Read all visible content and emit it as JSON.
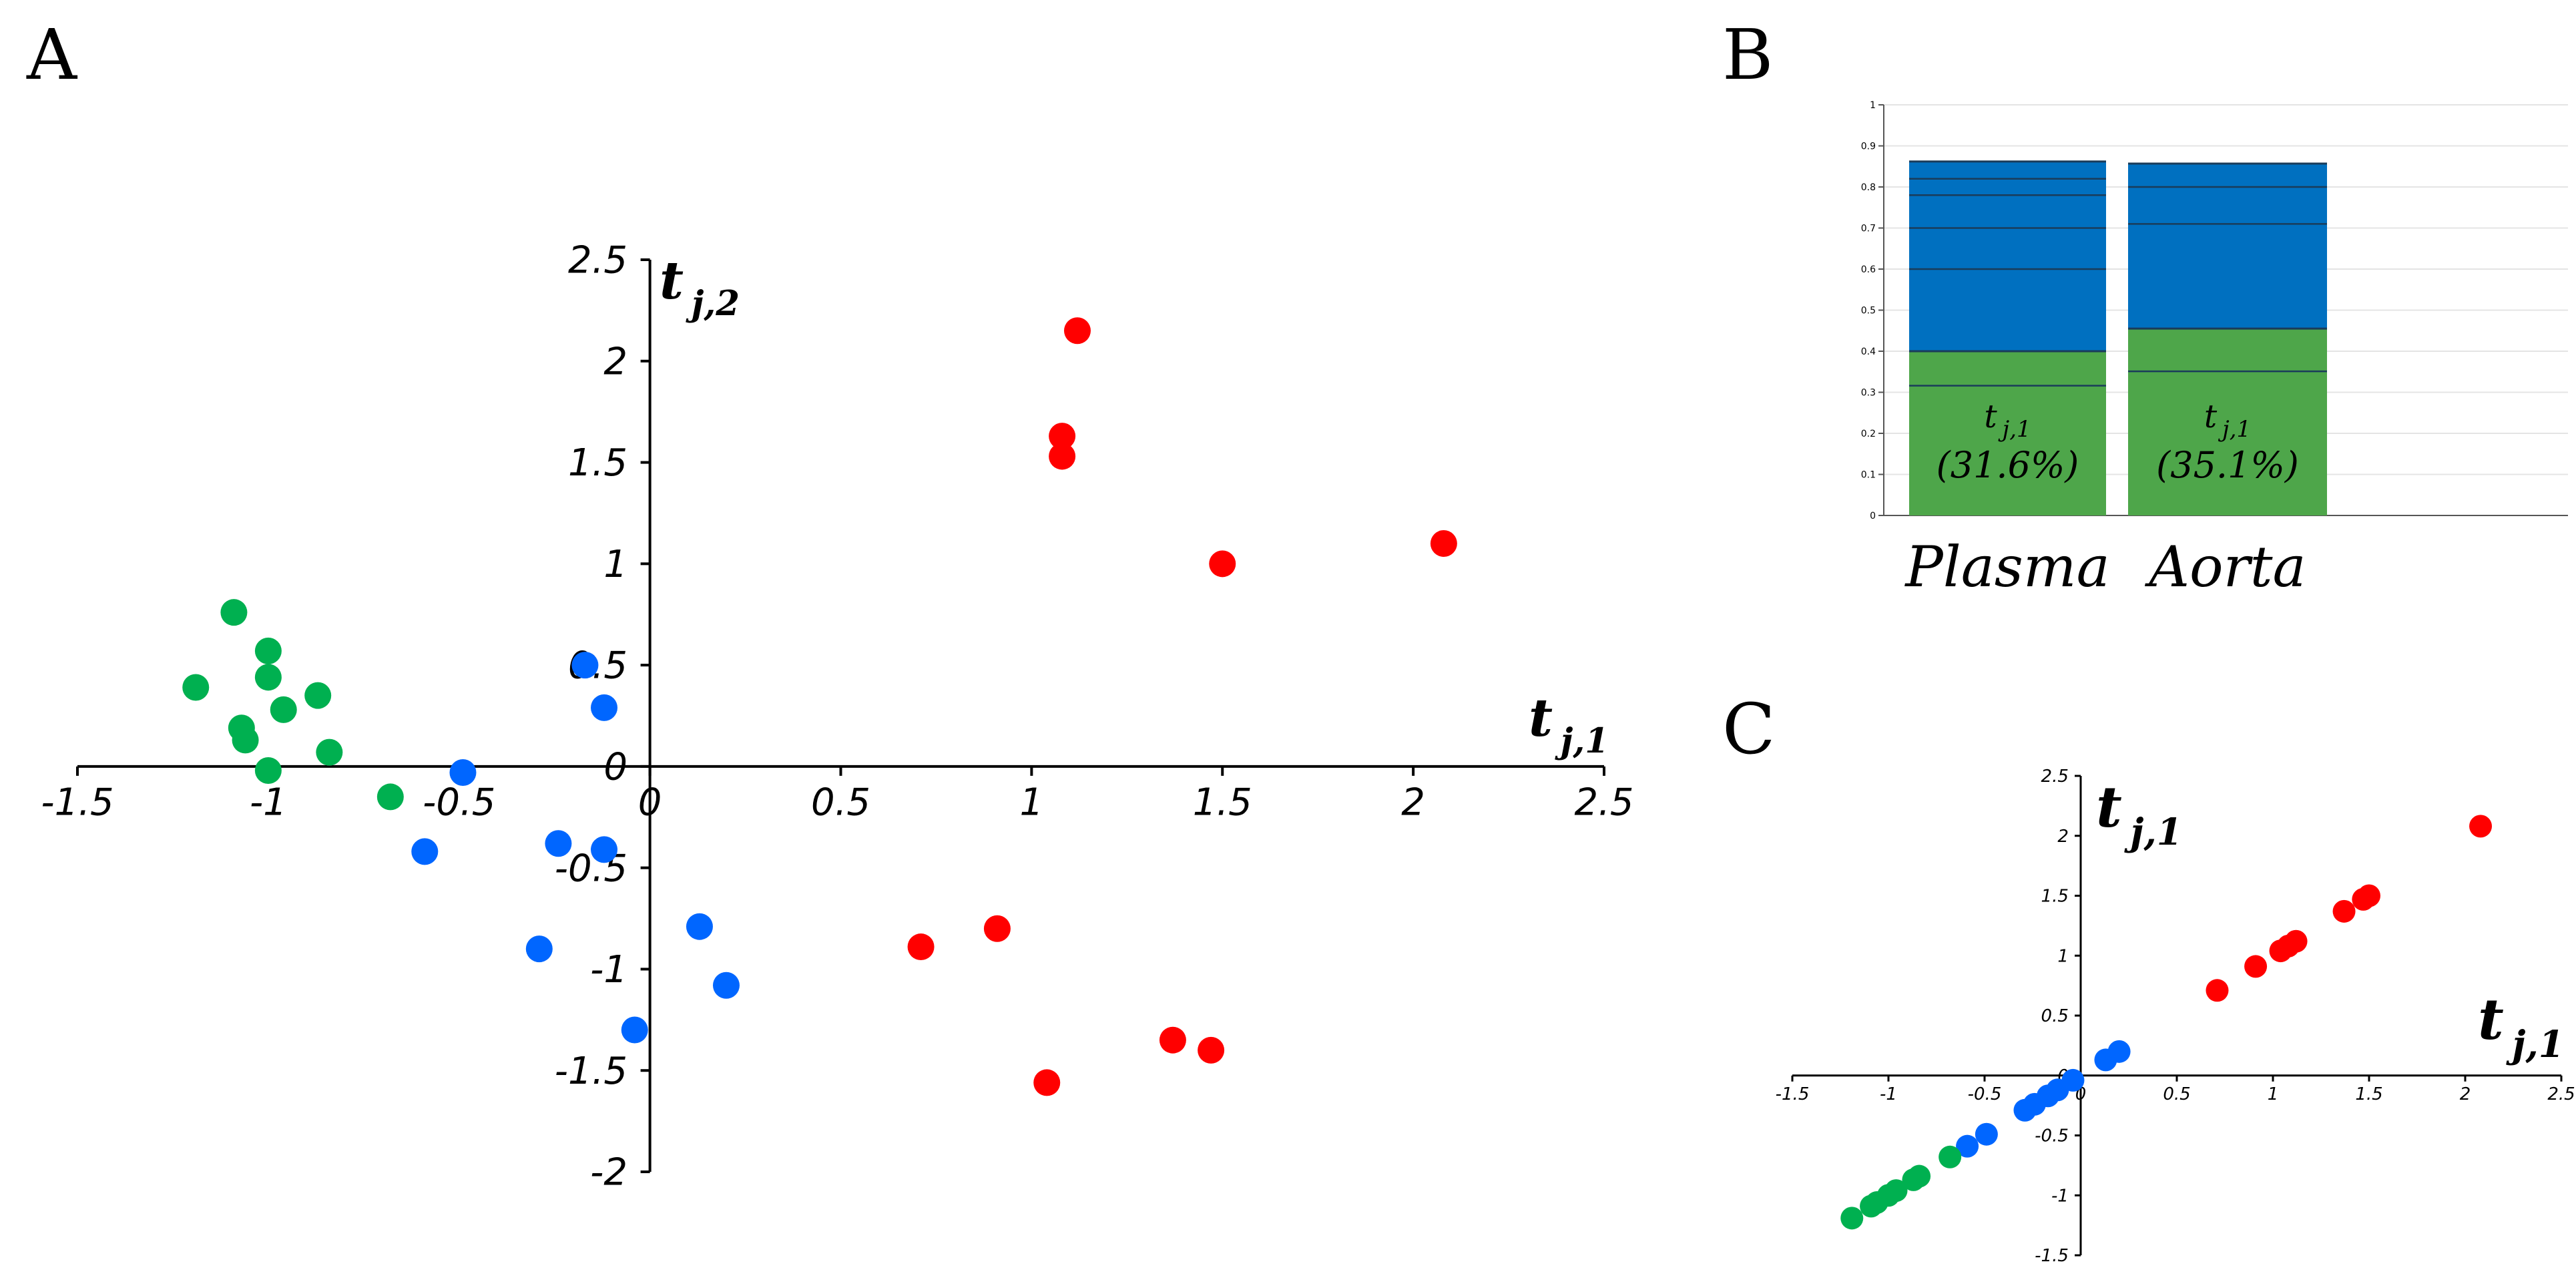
{
  "colors": {
    "red": "#ff0000",
    "blue": "#0066ff",
    "green": "#00b050",
    "bar_blue": "#0070c0",
    "bar_green": "#4ea64a"
  },
  "chart_data": [
    {
      "panel": "A",
      "type": "scatter",
      "xlabel": {
        "main": "t",
        "sub": "j,1"
      },
      "ylabel": {
        "main": "t",
        "sub": "j,2"
      },
      "xlim": [
        -1.5,
        2.5
      ],
      "ylim": [
        -2,
        2.5
      ],
      "xticks": [
        "-1.5",
        "-1",
        "-0.5",
        "0",
        "0.5",
        "1",
        "1.5",
        "2",
        "2.5"
      ],
      "yticks": [
        "-2",
        "-1.5",
        "-1",
        "-0.5",
        "0",
        "0.5",
        "1",
        "1.5",
        "2",
        "2.5"
      ],
      "grid": false,
      "series": [
        {
          "color": "red",
          "points": [
            [
              1.12,
              2.15
            ],
            [
              1.08,
              1.63
            ],
            [
              1.08,
              1.53
            ],
            [
              1.5,
              1.0
            ],
            [
              2.08,
              1.1
            ],
            [
              0.71,
              -0.89
            ],
            [
              0.91,
              -0.8
            ],
            [
              1.04,
              -1.56
            ],
            [
              1.37,
              -1.35
            ],
            [
              1.47,
              -1.4
            ]
          ]
        },
        {
          "color": "blue",
          "points": [
            [
              -0.17,
              0.5
            ],
            [
              -0.12,
              0.29
            ],
            [
              -0.49,
              -0.03
            ],
            [
              -0.59,
              -0.42
            ],
            [
              -0.24,
              -0.38
            ],
            [
              -0.12,
              -0.41
            ],
            [
              -0.29,
              -0.9
            ],
            [
              0.13,
              -0.79
            ],
            [
              0.2,
              -1.08
            ],
            [
              -0.04,
              -1.3
            ]
          ]
        },
        {
          "color": "green",
          "points": [
            [
              -1.09,
              0.76
            ],
            [
              -1.0,
              0.57
            ],
            [
              -1.0,
              0.44
            ],
            [
              -1.19,
              0.39
            ],
            [
              -0.87,
              0.35
            ],
            [
              -0.96,
              0.28
            ],
            [
              -1.07,
              0.19
            ],
            [
              -1.06,
              0.13
            ],
            [
              -0.84,
              0.07
            ],
            [
              -1.0,
              -0.02
            ],
            [
              -0.68,
              -0.15
            ]
          ]
        }
      ]
    },
    {
      "panel": "B",
      "type": "bar",
      "stacked": true,
      "categories": [
        "Plasma",
        "Aorta"
      ],
      "ylim": [
        0,
        1
      ],
      "yticks": [
        "0",
        "0.1",
        "0.2",
        "0.3",
        "0.4",
        "0.5",
        "0.6",
        "0.7",
        "0.8",
        "0.9",
        "1"
      ],
      "bars": [
        {
          "category": "Plasma",
          "green_top": 0.4,
          "total": 0.862,
          "component_boundaries": [
            0.316,
            0.6,
            0.7,
            0.78,
            0.82
          ],
          "label_main": "t",
          "label_sub": "j,1",
          "label_pct": "(31.6%)"
        },
        {
          "category": "Aorta",
          "green_top": 0.455,
          "total": 0.857,
          "component_boundaries": [
            0.351,
            0.71,
            0.8
          ],
          "label_main": "t",
          "label_sub": "j,1",
          "label_pct": "(35.1%)"
        }
      ]
    },
    {
      "panel": "C",
      "type": "scatter",
      "xlabel": {
        "main": "t",
        "sub": "j,1"
      },
      "ylabel": {
        "main": "t",
        "sub": "j,1"
      },
      "xlim": [
        -1.5,
        2.5
      ],
      "ylim": [
        -1.5,
        2.5
      ],
      "xticks": [
        "-1.5",
        "-1",
        "-0.5",
        "0",
        "0.5",
        "1",
        "1.5",
        "2",
        "2.5"
      ],
      "yticks": [
        "-1.5",
        "-1",
        "-0.5",
        "0",
        "0.5",
        "1",
        "1.5",
        "2",
        "2.5"
      ],
      "series": [
        {
          "color": "red",
          "points": [
            [
              2.08,
              2.08
            ],
            [
              1.5,
              1.5
            ],
            [
              1.47,
              1.47
            ],
            [
              1.37,
              1.37
            ],
            [
              1.12,
              1.12
            ],
            [
              1.08,
              1.08
            ],
            [
              1.04,
              1.04
            ],
            [
              0.91,
              0.91
            ],
            [
              0.71,
              0.71
            ]
          ]
        },
        {
          "color": "blue",
          "points": [
            [
              0.2,
              0.2
            ],
            [
              0.13,
              0.13
            ],
            [
              -0.04,
              -0.04
            ],
            [
              -0.12,
              -0.12
            ],
            [
              -0.17,
              -0.17
            ],
            [
              -0.24,
              -0.24
            ],
            [
              -0.29,
              -0.29
            ],
            [
              -0.49,
              -0.49
            ],
            [
              -0.59,
              -0.59
            ]
          ]
        },
        {
          "color": "green",
          "points": [
            [
              -0.68,
              -0.68
            ],
            [
              -0.84,
              -0.84
            ],
            [
              -0.87,
              -0.87
            ],
            [
              -0.96,
              -0.96
            ],
            [
              -1.0,
              -1.0
            ],
            [
              -1.06,
              -1.06
            ],
            [
              -1.09,
              -1.09
            ],
            [
              -1.19,
              -1.19
            ]
          ]
        }
      ]
    }
  ],
  "panel_labels": [
    "A",
    "B",
    "C"
  ]
}
